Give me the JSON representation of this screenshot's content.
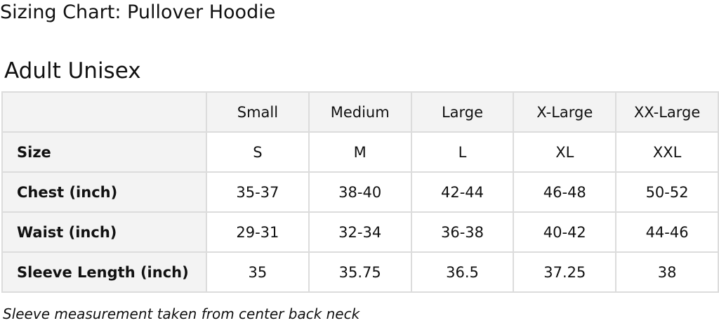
{
  "title": "Sizing Chart: Pullover Hoodie",
  "subtitle": "Adult Unisex",
  "table": {
    "columns": [
      "",
      "Small",
      "Medium",
      "Large",
      "X-Large",
      "XX-Large"
    ],
    "rows": [
      {
        "label": "Size",
        "values": [
          "S",
          "M",
          "L",
          "XL",
          "XXL"
        ]
      },
      {
        "label": "Chest (inch)",
        "values": [
          "35-37",
          "38-40",
          "42-44",
          "46-48",
          "50-52"
        ]
      },
      {
        "label": "Waist (inch)",
        "values": [
          "29-31",
          "32-34",
          "36-38",
          "40-42",
          "44-46"
        ]
      },
      {
        "label": "Sleeve Length (inch)",
        "values": [
          "35",
          "35.75",
          "36.5",
          "37.25",
          "38"
        ]
      }
    ]
  },
  "note": "Sleeve measurement taken from center back neck",
  "colors": {
    "header_bg": "#f3f3f3",
    "border": "#dcdcdc"
  }
}
